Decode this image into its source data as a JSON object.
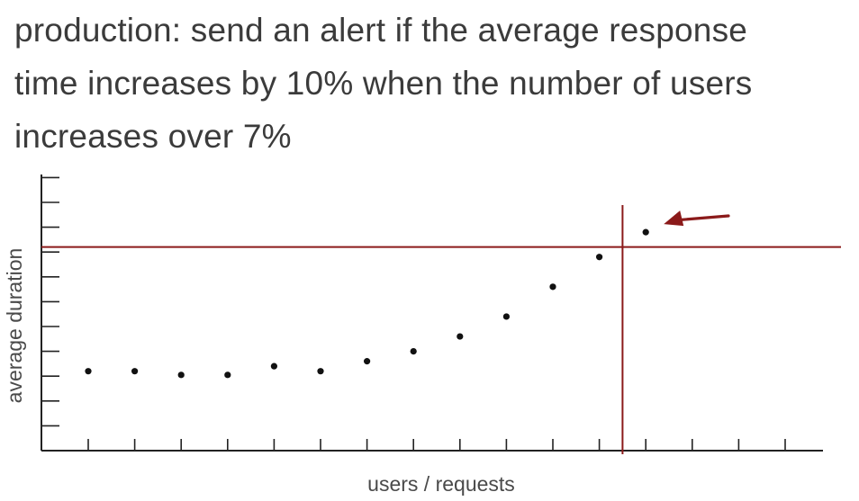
{
  "headline": {
    "lines": [
      "production: send an alert if the average response",
      "time increases by 10% when the number of users",
      "increases over 7%"
    ]
  },
  "chart_data": {
    "type": "scatter",
    "xlabel": "users / requests",
    "ylabel": "average duration",
    "x_tick_count": 16,
    "y_tick_count": 11,
    "points": [
      {
        "x": 1,
        "y": 3.2
      },
      {
        "x": 2,
        "y": 3.2
      },
      {
        "x": 3,
        "y": 3.05
      },
      {
        "x": 4,
        "y": 3.05
      },
      {
        "x": 5,
        "y": 3.4
      },
      {
        "x": 6,
        "y": 3.2
      },
      {
        "x": 7,
        "y": 3.6
      },
      {
        "x": 8,
        "y": 4.0
      },
      {
        "x": 9,
        "y": 4.6
      },
      {
        "x": 10,
        "y": 5.4
      },
      {
        "x": 11,
        "y": 6.6
      },
      {
        "x": 12,
        "y": 7.8
      },
      {
        "x": 13,
        "y": 8.8
      }
    ],
    "threshold_y": 8.2,
    "threshold_x": 12.5,
    "colors": {
      "axis": "#222222",
      "point": "#111111",
      "threshold": "#8b1a1a",
      "arrow": "#8b1a1a"
    },
    "annotation": "arrow pointing at the point beyond the thresholds"
  }
}
